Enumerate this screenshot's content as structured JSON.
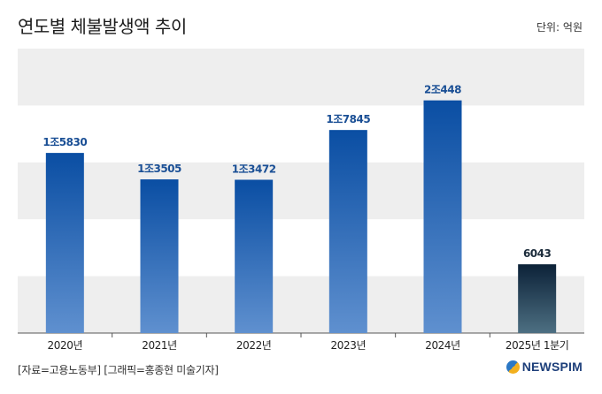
{
  "header": {
    "title": "연도별 체불발생액 추이",
    "unit": "단위: 억원"
  },
  "footer": {
    "source": "[자료=고용노동부] [그래픽=홍종현 미술기자]",
    "logo_text": "NEWSPIM"
  },
  "colors": {
    "bar_top": "#0a4ea3",
    "bar_bottom": "#5f90cf",
    "last_bar_top": "#0c2238",
    "last_bar_bottom": "#4d6f82",
    "band": "#eeeeee",
    "label": "#1a4f95",
    "last_label": "#1b2b3a"
  },
  "chart_data": {
    "type": "bar",
    "categories": [
      "2020년",
      "2021년",
      "2022년",
      "2023년",
      "2024년",
      "2025년 1분기"
    ],
    "values": [
      15830,
      13505,
      13472,
      17845,
      20448,
      6043
    ],
    "data_labels": [
      "1조5830",
      "1조3505",
      "1조3472",
      "1조7845",
      "2조448",
      "6043"
    ],
    "ylim": [
      0,
      25000
    ],
    "grid": "alternating horizontal bands",
    "xlabel": "",
    "ylabel": ""
  }
}
